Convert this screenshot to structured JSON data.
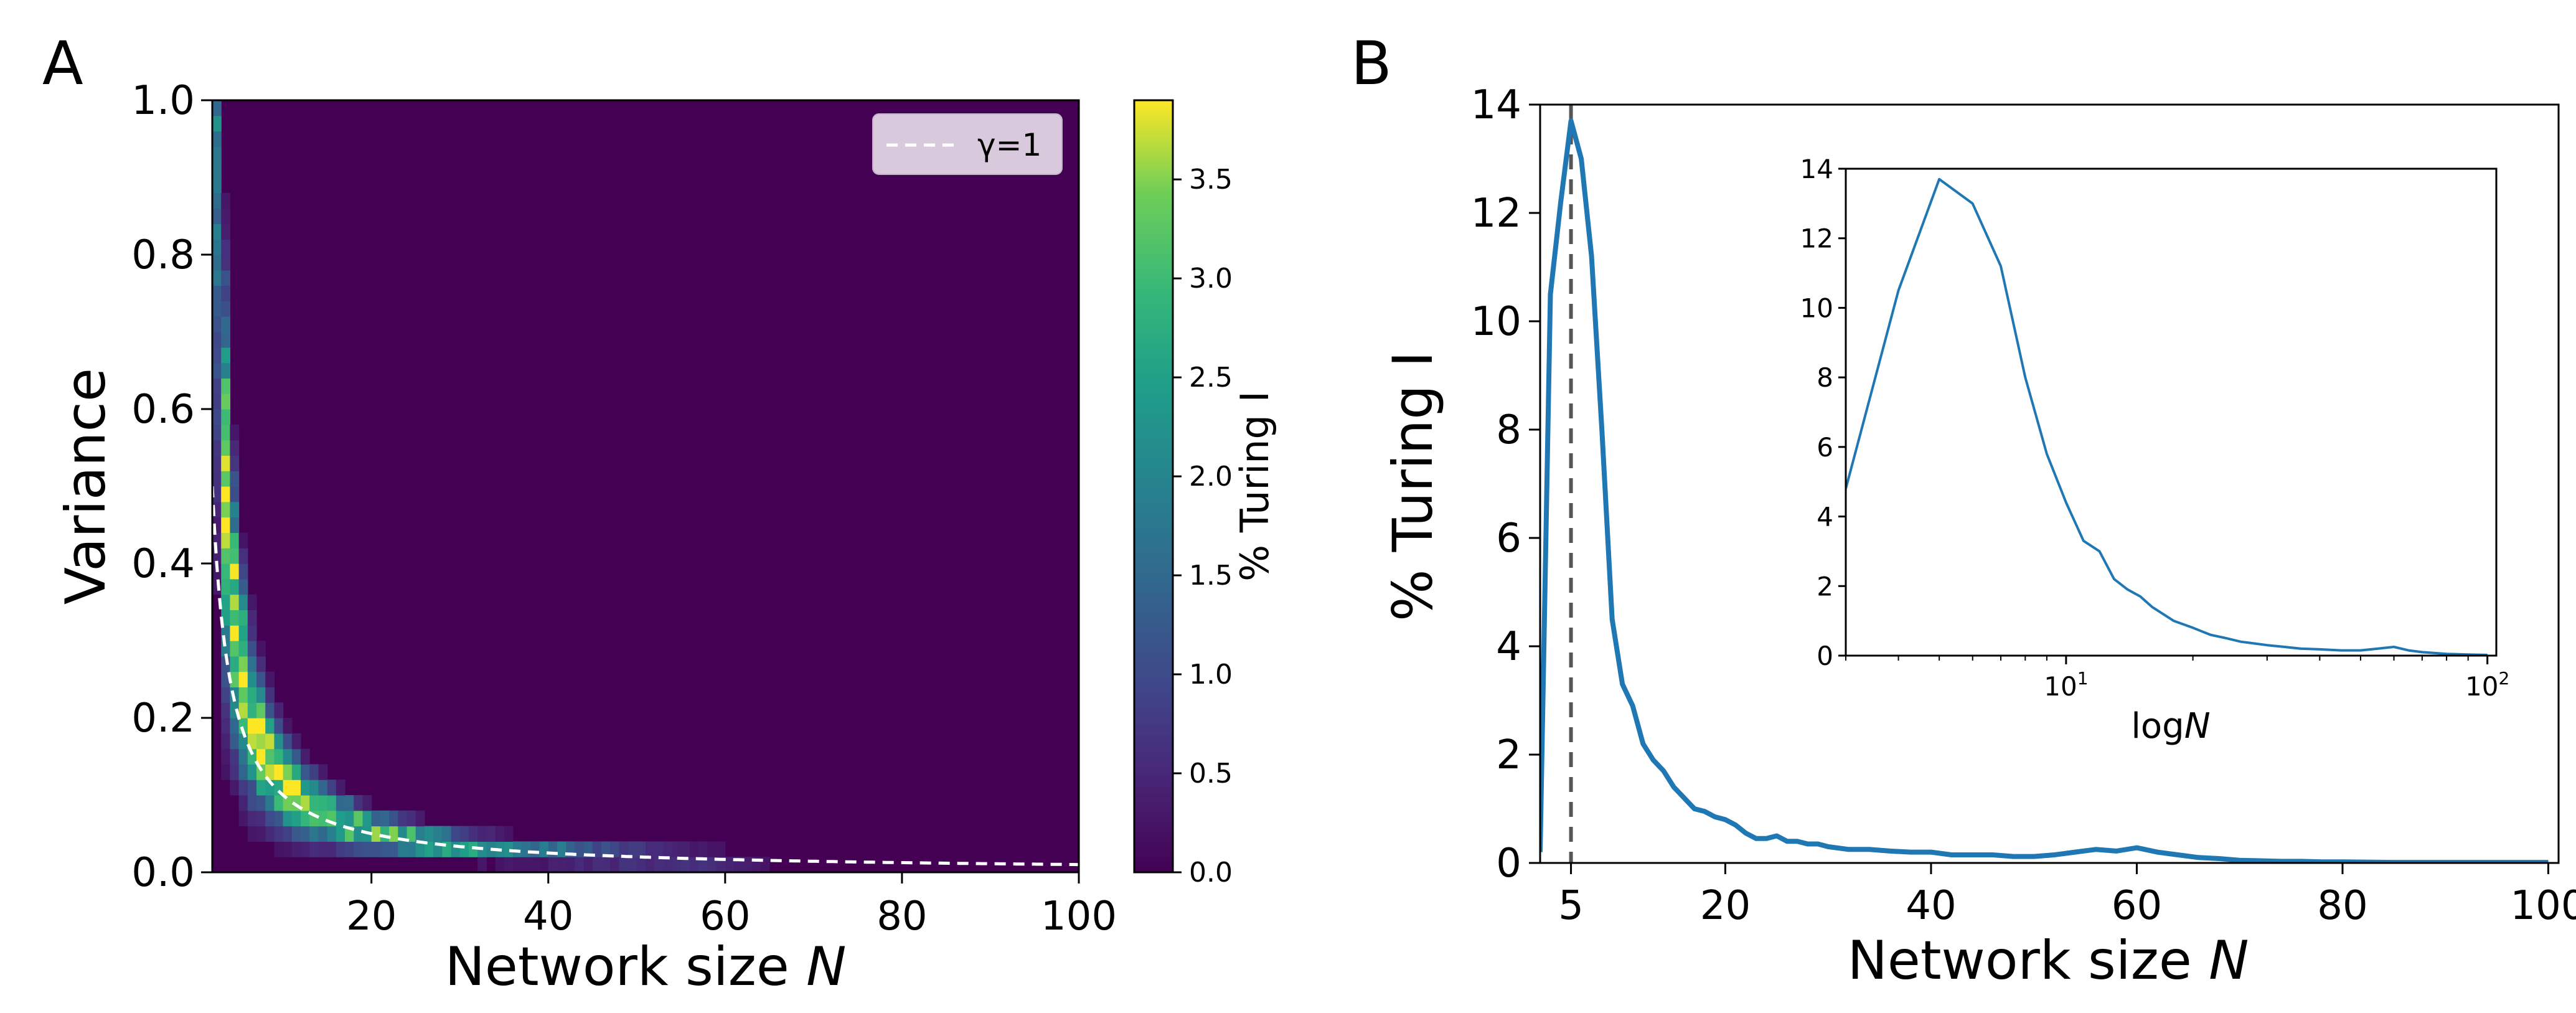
{
  "panel_a": {
    "label": "A",
    "chart_data": {
      "type": "heatmap",
      "xlabel_prefix": "Network size ",
      "xlabel_var": "N",
      "ylabel": "Variance",
      "xlim": [
        2,
        100
      ],
      "ylim": [
        0,
        1
      ],
      "xticks": [
        20,
        40,
        60,
        80,
        100
      ],
      "yticks": [
        0.0,
        0.2,
        0.4,
        0.6,
        0.8,
        1.0
      ],
      "ytick_labels": [
        "0.0",
        "0.2",
        "0.4",
        "0.6",
        "0.8",
        "1.0"
      ],
      "grid_bins": {
        "n_start": 2,
        "n_end": 100,
        "n_cols": 98,
        "n_rows": 50
      },
      "ridge_description": "high density along variance ~ 1/(N-1.5), peak ~3.9% near N=5, tail to N~70",
      "colorbar": {
        "label": "% Turing I",
        "min": 0.0,
        "max": 3.9,
        "ticks": [
          0.0,
          0.5,
          1.0,
          1.5,
          2.0,
          2.5,
          3.0,
          3.5
        ],
        "tick_labels": [
          "0.0",
          "0.5",
          "1.0",
          "1.5",
          "2.0",
          "2.5",
          "3.0",
          "3.5"
        ],
        "colormap": "viridis"
      },
      "reference_curve": {
        "name": "γ=1",
        "formula": "variance = 1/N",
        "style": "white dashed"
      },
      "legend": {
        "entries": [
          "γ=1"
        ],
        "placement": "top-right"
      }
    }
  },
  "panel_b": {
    "label": "B",
    "chart_data": {
      "type": "line",
      "xlabel_prefix": "Network size ",
      "xlabel_var": "N",
      "ylabel": "% Turing I",
      "xlim": [
        2,
        101
      ],
      "ylim": [
        0,
        14
      ],
      "xticks": [
        5,
        20,
        40,
        60,
        80,
        100
      ],
      "yticks": [
        0,
        2,
        4,
        6,
        8,
        10,
        12,
        14
      ],
      "reference_line": {
        "x": 5,
        "style": "gray dashed vertical"
      },
      "series": [
        {
          "name": "% Turing I",
          "color": "#1f77b4",
          "x": [
            2,
            3,
            4,
            5,
            6,
            7,
            8,
            9,
            10,
            11,
            12,
            13,
            14,
            15,
            16,
            17,
            18,
            19,
            20,
            21,
            22,
            23,
            24,
            25,
            26,
            27,
            28,
            29,
            30,
            32,
            34,
            36,
            38,
            40,
            42,
            44,
            46,
            48,
            50,
            52,
            54,
            56,
            58,
            60,
            62,
            64,
            66,
            68,
            70,
            72,
            74,
            76,
            78,
            80,
            85,
            90,
            95,
            100
          ],
          "values": [
            0.2,
            10.5,
            12.2,
            13.7,
            13.0,
            11.2,
            8.0,
            4.5,
            3.3,
            2.9,
            2.2,
            1.9,
            1.7,
            1.4,
            1.2,
            1.0,
            0.95,
            0.85,
            0.8,
            0.7,
            0.55,
            0.45,
            0.45,
            0.5,
            0.4,
            0.4,
            0.35,
            0.35,
            0.3,
            0.25,
            0.25,
            0.22,
            0.2,
            0.2,
            0.15,
            0.15,
            0.15,
            0.12,
            0.12,
            0.15,
            0.2,
            0.25,
            0.22,
            0.28,
            0.2,
            0.15,
            0.1,
            0.08,
            0.05,
            0.04,
            0.03,
            0.03,
            0.02,
            0.02,
            0.01,
            0.01,
            0.01,
            0.01
          ]
        }
      ],
      "inset": {
        "type": "line",
        "xscale": "log",
        "xlim": [
          3,
          105
        ],
        "ylim": [
          0,
          14
        ],
        "yticks": [
          0,
          2,
          4,
          6,
          8,
          10,
          12,
          14
        ],
        "xtick_labels": [
          {
            "base": "10",
            "exp": "1",
            "value": 10
          },
          {
            "base": "10",
            "exp": "2",
            "value": 100
          }
        ],
        "xlabel_prefix": "log",
        "xlabel_var": "N",
        "series": [
          {
            "name": "% Turing I",
            "color": "#1f77b4",
            "x": [
              3,
              4,
              5,
              6,
              7,
              8,
              9,
              10,
              11,
              12,
              13,
              14,
              15,
              16,
              18,
              20,
              22,
              24,
              26,
              28,
              30,
              33,
              36,
              40,
              45,
              50,
              55,
              60,
              65,
              70,
              80,
              90,
              100
            ],
            "values": [
              4.8,
              10.5,
              13.7,
              13.0,
              11.2,
              8.0,
              5.8,
              4.4,
              3.3,
              3.0,
              2.2,
              1.9,
              1.7,
              1.4,
              1.0,
              0.8,
              0.6,
              0.5,
              0.4,
              0.35,
              0.3,
              0.25,
              0.2,
              0.18,
              0.15,
              0.15,
              0.2,
              0.25,
              0.15,
              0.1,
              0.05,
              0.03,
              0.02
            ]
          }
        ]
      }
    }
  }
}
